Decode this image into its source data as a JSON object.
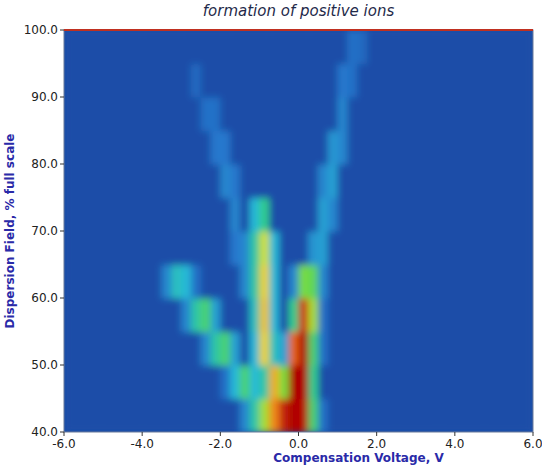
{
  "chart_data": {
    "type": "heatmap",
    "title": "formation of positive ions",
    "x_label": "Compensation Voltage, V",
    "y_label": "Dispersion Field, % full scale",
    "xlim": [
      -6,
      6
    ],
    "ylim": [
      40,
      100
    ],
    "xticks": [
      {
        "value": -6,
        "label": "-6.0"
      },
      {
        "value": -4,
        "label": "-4.0"
      },
      {
        "value": -2,
        "label": "-2.0"
      },
      {
        "value": 0,
        "label": "0.0"
      },
      {
        "value": 2,
        "label": "2.0"
      },
      {
        "value": 4,
        "label": "4.0"
      },
      {
        "value": 6,
        "label": "6.0"
      }
    ],
    "yticks": [
      {
        "value": 40,
        "label": "40.0"
      },
      {
        "value": 50,
        "label": "50.0"
      },
      {
        "value": 60,
        "label": "60.0"
      },
      {
        "value": 70,
        "label": "70.0"
      },
      {
        "value": 80,
        "label": "80.0"
      },
      {
        "value": 90,
        "label": "90.0"
      },
      {
        "value": 100,
        "label": "100.0"
      }
    ],
    "x_bins": [
      -6,
      -5.75,
      -5.5,
      -5.25,
      -5,
      -4.75,
      -4.5,
      -4.25,
      -4,
      -3.75,
      -3.5,
      -3.25,
      -3,
      -2.75,
      -2.5,
      -2.25,
      -2,
      -1.75,
      -1.5,
      -1.25,
      -1,
      -0.75,
      -0.5,
      -0.25,
      0,
      0.25,
      0.5,
      0.75,
      1,
      1.25,
      1.5,
      1.75,
      2,
      2.25,
      2.5,
      2.75,
      3,
      3.25,
      3.5,
      3.75,
      4,
      4.25,
      4.5,
      4.75,
      5,
      5.25,
      5.5,
      5.75,
      6
    ],
    "y_bins": [
      40,
      45,
      50,
      55,
      60,
      65,
      70,
      75,
      80,
      85,
      90,
      95,
      100
    ],
    "zlim": [
      0,
      100
    ],
    "z": [
      [
        0,
        0,
        0,
        0,
        0,
        0,
        0,
        0,
        0,
        0,
        0,
        0,
        0,
        0,
        0,
        0,
        0,
        0,
        15,
        35,
        60,
        80,
        95,
        100,
        98,
        45,
        10,
        0,
        0,
        0,
        0,
        0,
        0,
        0,
        0,
        0,
        0,
        0,
        0,
        0,
        0,
        0,
        0,
        0,
        0,
        0,
        0,
        0
      ],
      [
        0,
        0,
        0,
        0,
        0,
        0,
        0,
        0,
        0,
        0,
        0,
        0,
        0,
        0,
        0,
        0,
        10,
        25,
        45,
        25,
        35,
        75,
        55,
        100,
        100,
        40,
        0,
        0,
        0,
        0,
        0,
        0,
        0,
        0,
        0,
        0,
        0,
        0,
        0,
        0,
        0,
        0,
        0,
        0,
        0,
        0,
        0,
        0
      ],
      [
        0,
        0,
        0,
        0,
        0,
        0,
        0,
        0,
        0,
        0,
        0,
        0,
        0,
        0,
        15,
        35,
        45,
        20,
        0,
        25,
        70,
        30,
        20,
        85,
        100,
        45,
        10,
        0,
        0,
        0,
        0,
        0,
        0,
        0,
        0,
        0,
        0,
        0,
        0,
        0,
        0,
        0,
        0,
        0,
        0,
        0,
        0,
        0
      ],
      [
        0,
        0,
        0,
        0,
        0,
        0,
        0,
        0,
        0,
        0,
        0,
        0,
        15,
        35,
        45,
        20,
        0,
        0,
        0,
        30,
        72,
        25,
        0,
        40,
        92,
        60,
        10,
        0,
        0,
        0,
        0,
        0,
        0,
        0,
        0,
        0,
        0,
        0,
        0,
        0,
        0,
        0,
        0,
        0,
        0,
        0,
        0,
        0
      ],
      [
        0,
        0,
        0,
        0,
        0,
        0,
        0,
        0,
        0,
        0,
        15,
        30,
        25,
        10,
        0,
        0,
        0,
        0,
        15,
        35,
        70,
        25,
        0,
        15,
        55,
        50,
        15,
        0,
        0,
        0,
        0,
        0,
        0,
        0,
        0,
        0,
        0,
        0,
        0,
        0,
        0,
        0,
        0,
        0,
        0,
        0,
        0,
        0
      ],
      [
        0,
        0,
        0,
        0,
        0,
        0,
        0,
        0,
        0,
        0,
        0,
        0,
        0,
        0,
        0,
        0,
        0,
        12,
        15,
        35,
        65,
        25,
        0,
        0,
        0,
        18,
        20,
        0,
        0,
        0,
        0,
        0,
        0,
        0,
        0,
        0,
        0,
        0,
        0,
        0,
        0,
        0,
        0,
        0,
        0,
        0,
        0,
        0
      ],
      [
        0,
        0,
        0,
        0,
        0,
        0,
        0,
        0,
        0,
        0,
        0,
        0,
        0,
        0,
        0,
        0,
        0,
        15,
        0,
        25,
        40,
        0,
        0,
        0,
        0,
        0,
        20,
        15,
        0,
        0,
        0,
        0,
        0,
        0,
        0,
        0,
        0,
        0,
        0,
        0,
        0,
        0,
        0,
        0,
        0,
        0,
        0,
        0
      ],
      [
        0,
        0,
        0,
        0,
        0,
        0,
        0,
        0,
        0,
        0,
        0,
        0,
        0,
        0,
        0,
        0,
        15,
        12,
        0,
        0,
        0,
        0,
        0,
        0,
        0,
        0,
        15,
        20,
        0,
        0,
        0,
        0,
        0,
        0,
        0,
        0,
        0,
        0,
        0,
        0,
        0,
        0,
        0,
        0,
        0,
        0,
        0,
        0
      ],
      [
        0,
        0,
        0,
        0,
        0,
        0,
        0,
        0,
        0,
        0,
        0,
        0,
        0,
        0,
        0,
        12,
        12,
        0,
        0,
        0,
        0,
        0,
        0,
        0,
        0,
        0,
        0,
        18,
        15,
        0,
        0,
        0,
        0,
        0,
        0,
        0,
        0,
        0,
        0,
        0,
        0,
        0,
        0,
        0,
        0,
        0,
        0,
        0
      ],
      [
        0,
        0,
        0,
        0,
        0,
        0,
        0,
        0,
        0,
        0,
        0,
        0,
        0,
        0,
        10,
        10,
        0,
        0,
        0,
        0,
        0,
        0,
        0,
        0,
        0,
        0,
        0,
        0,
        15,
        0,
        0,
        0,
        0,
        0,
        0,
        0,
        0,
        0,
        0,
        0,
        0,
        0,
        0,
        0,
        0,
        0,
        0,
        0
      ],
      [
        0,
        0,
        0,
        0,
        0,
        0,
        0,
        0,
        0,
        0,
        0,
        0,
        0,
        8,
        0,
        0,
        0,
        0,
        0,
        0,
        0,
        0,
        0,
        0,
        0,
        0,
        0,
        0,
        12,
        10,
        0,
        0,
        0,
        0,
        0,
        0,
        0,
        0,
        0,
        0,
        0,
        0,
        0,
        0,
        0,
        0,
        0,
        0
      ],
      [
        0,
        0,
        0,
        0,
        0,
        0,
        0,
        0,
        0,
        0,
        0,
        0,
        0,
        0,
        0,
        0,
        0,
        0,
        0,
        0,
        0,
        0,
        0,
        0,
        0,
        0,
        0,
        0,
        0,
        10,
        8,
        0,
        0,
        0,
        0,
        0,
        0,
        0,
        0,
        0,
        0,
        0,
        0,
        0,
        0,
        0,
        0,
        0
      ]
    ]
  }
}
